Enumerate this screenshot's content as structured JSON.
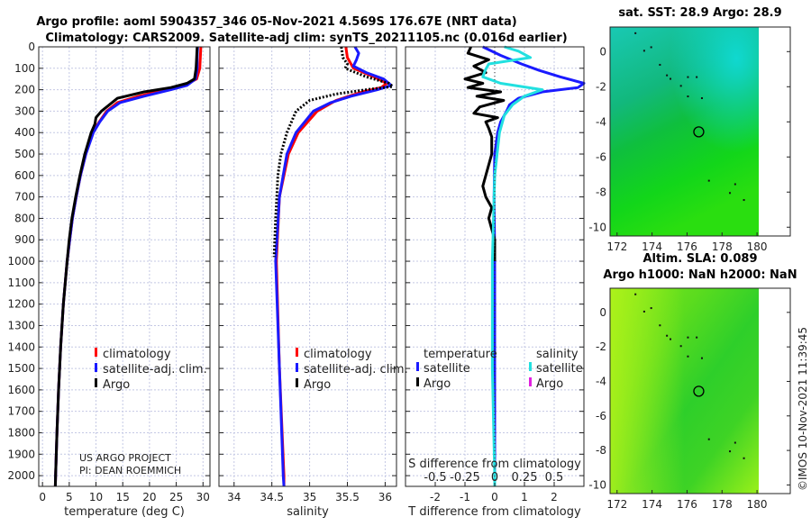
{
  "title_line1": "Argo profile: aoml 5904357_346 05-Nov-2021 4.569S 176.67E (NRT data)",
  "title_line2": "Climatology: CARS2009. Satellite-adj clim: synTS_20211105.nc (0.016d earlier)",
  "credit_line1": "US ARGO PROJECT",
  "credit_line2": "PI: DEAN ROEMMICH",
  "timestamp": "©IMOS 10-Nov-2021 11:39:45",
  "colors": {
    "climatology": "#ff0000",
    "satellite": "#1a1aff",
    "argo": "#000000",
    "sal_satellite": "#22e0e0",
    "sal_argo": "#e020e0",
    "grid": "#c4c8e4"
  },
  "chart_data": [
    {
      "type": "line",
      "id": "temperature",
      "xlabel": "temperature (deg C)",
      "ylabel": "",
      "xlim": [
        -0.7,
        31.3
      ],
      "ylim": [
        0,
        2050
      ],
      "xticks": [
        "0",
        "5",
        "10",
        "15",
        "20",
        "25",
        "30"
      ],
      "xtick_values": [
        0,
        5,
        10,
        15,
        20,
        25,
        30
      ],
      "yticks": [
        "0",
        "100",
        "200",
        "300",
        "400",
        "500",
        "600",
        "700",
        "800",
        "900",
        "1000",
        "1100",
        "1200",
        "1300",
        "1400",
        "1500",
        "1600",
        "1700",
        "1800",
        "1900",
        "2000"
      ],
      "ytick_values": [
        0,
        100,
        200,
        300,
        400,
        500,
        600,
        700,
        800,
        900,
        1000,
        1100,
        1200,
        1300,
        1400,
        1500,
        1600,
        1700,
        1800,
        1900,
        2000
      ],
      "legend": [
        "climatology",
        "satellite-adj. clim.",
        "Argo"
      ],
      "series": [
        {
          "name": "climatology",
          "color_key": "climatology",
          "depth": [
            0,
            50,
            100,
            150,
            180,
            200,
            230,
            260,
            300,
            350,
            400,
            500,
            600,
            700,
            800,
            900,
            1000,
            1200,
            1400,
            1600,
            1800,
            2000,
            2050
          ],
          "values": [
            29.6,
            29.5,
            29.4,
            28.8,
            26.5,
            23,
            18,
            14,
            12,
            10.6,
            9.4,
            8.1,
            7.1,
            6.3,
            5.6,
            5.1,
            4.6,
            3.9,
            3.4,
            3,
            2.7,
            2.45,
            2.4
          ]
        },
        {
          "name": "satellite-adj. clim.",
          "color_key": "satellite",
          "depth": [
            0,
            50,
            100,
            150,
            180,
            200,
            230,
            260,
            300,
            350,
            400,
            500,
            600,
            700,
            800,
            900,
            1000,
            1200,
            1400,
            1600,
            1800,
            2000,
            2050
          ],
          "values": [
            29.0,
            28.9,
            28.9,
            28.6,
            27,
            24,
            19,
            14.5,
            12.2,
            10.7,
            9.5,
            8.1,
            7.1,
            6.3,
            5.6,
            5.1,
            4.6,
            3.9,
            3.4,
            3,
            2.7,
            2.45,
            2.4
          ]
        },
        {
          "name": "Argo",
          "color_key": "argo",
          "depth": [
            0,
            50,
            100,
            150,
            170,
            190,
            210,
            240,
            270,
            300,
            330,
            360,
            400,
            500,
            600,
            700,
            800,
            900,
            1000,
            1200,
            1400,
            1600,
            1800,
            2000,
            2050
          ],
          "values": [
            28.9,
            28.8,
            28.7,
            28.4,
            27,
            24,
            19,
            14,
            12.5,
            11,
            10,
            9.8,
            9.1,
            7.9,
            7,
            6.2,
            5.5,
            5,
            4.6,
            3.9,
            3.4,
            3,
            2.7,
            2.45,
            2.4
          ]
        }
      ]
    },
    {
      "type": "line",
      "id": "salinity",
      "xlabel": "salinity",
      "xlim": [
        33.8,
        36.15
      ],
      "ylim": [
        0,
        2050
      ],
      "xticks": [
        "34",
        "34.5",
        "35",
        "35.5",
        "36"
      ],
      "xtick_values": [
        34,
        34.5,
        35,
        35.5,
        36
      ],
      "legend": [
        "climatology",
        "satellite-adj. clim.",
        "Argo"
      ],
      "series": [
        {
          "name": "climatology",
          "color_key": "climatology",
          "depth": [
            0,
            50,
            100,
            140,
            170,
            190,
            210,
            250,
            300,
            400,
            500,
            700,
            1000,
            1500,
            2000,
            2050
          ],
          "values": [
            35.48,
            35.5,
            35.58,
            35.85,
            36.02,
            35.95,
            35.7,
            35.35,
            35.1,
            34.85,
            34.72,
            34.6,
            34.56,
            34.6,
            34.66,
            34.66
          ]
        },
        {
          "name": "satellite-adj. clim.",
          "color_key": "satellite",
          "depth": [
            0,
            30,
            60,
            90,
            120,
            150,
            180,
            200,
            230,
            260,
            300,
            400,
            500,
            700,
            1000,
            1500,
            2000,
            2050
          ],
          "values": [
            35.6,
            35.65,
            35.62,
            35.58,
            35.75,
            35.98,
            36.08,
            35.9,
            35.55,
            35.28,
            35.05,
            34.82,
            34.7,
            34.6,
            34.55,
            34.6,
            34.65,
            34.66
          ]
        },
        {
          "name": "Argo",
          "color_key": "argo",
          "dashed": true,
          "depth": [
            0,
            50,
            80,
            100,
            140,
            170,
            185,
            200,
            220,
            250,
            300,
            400,
            500,
            600,
            800,
            980
          ],
          "values": [
            35.42,
            35.44,
            35.5,
            35.47,
            35.75,
            36.05,
            36.1,
            35.75,
            35.35,
            35.0,
            34.82,
            34.7,
            34.62,
            34.58,
            34.55,
            34.53
          ]
        }
      ]
    },
    {
      "type": "line",
      "id": "differences",
      "xlabel": "T difference from climatology",
      "x2label": "S difference from climatology",
      "xlim": [
        -3,
        3
      ],
      "ylim": [
        0,
        2050
      ],
      "xticks": [
        "-2",
        "-1",
        "0",
        "1",
        "2"
      ],
      "xtick_values": [
        -2,
        -1,
        0,
        1,
        2
      ],
      "s_ticks": [
        "-0.5",
        "-0.25",
        "0",
        "0.25",
        "0.5"
      ],
      "s_tick_values": [
        -0.5,
        -0.25,
        0,
        0.25,
        0.5
      ],
      "legend_headers": [
        "temperature",
        "salinity"
      ],
      "legend": [
        "satellite",
        "Argo",
        "satellite",
        "Argo"
      ],
      "series": [
        {
          "name": "T satellite",
          "color_key": "satellite",
          "units": "T",
          "depth": [
            0,
            40,
            80,
            110,
            140,
            170,
            190,
            210,
            240,
            270,
            300,
            350,
            400,
            500,
            700,
            1000,
            2000,
            2050
          ],
          "values": [
            -0.4,
            0.2,
            0.9,
            1.5,
            2.2,
            3.0,
            2.8,
            1.6,
            0.8,
            0.5,
            0.4,
            0.2,
            0.1,
            0.0,
            -0.02,
            0,
            0,
            0
          ]
        },
        {
          "name": "T Argo",
          "color_key": "argo",
          "units": "T",
          "depth": [
            0,
            30,
            60,
            90,
            120,
            150,
            170,
            190,
            210,
            230,
            250,
            280,
            310,
            330,
            350,
            380,
            420,
            500,
            600,
            650,
            700,
            750,
            800,
            900,
            1000
          ],
          "values": [
            -0.8,
            -0.9,
            -0.2,
            -0.7,
            -0.3,
            -1.0,
            -0.4,
            -0.9,
            0.2,
            -0.6,
            0.3,
            -0.5,
            -0.7,
            0.1,
            -0.3,
            -0.2,
            -0.1,
            -0.1,
            -0.3,
            -0.4,
            -0.3,
            -0.1,
            -0.2,
            0,
            0
          ]
        },
        {
          "name": "S satellite",
          "color_key": "sal_satellite",
          "units": "S",
          "depth": [
            0,
            20,
            50,
            80,
            110,
            140,
            170,
            200,
            230,
            270,
            320,
            400,
            600,
            1000,
            1500,
            2000,
            2050
          ],
          "values": [
            0.08,
            0.2,
            0.3,
            -0.05,
            -0.08,
            -0.1,
            0.05,
            0.4,
            0.25,
            0.15,
            0.08,
            0.04,
            0,
            -0.02,
            -0.02,
            0,
            0
          ]
        }
      ]
    },
    {
      "type": "heatmap",
      "id": "sst_map",
      "title": "sat. SST: 28.9 Argo: 28.9",
      "xticks": [
        "172",
        "174",
        "176",
        "178",
        "180"
      ],
      "xtick_values": [
        172,
        174,
        176,
        178,
        180
      ],
      "yticks": [
        "0",
        "-2",
        "-4",
        "-6",
        "-8",
        "-10"
      ],
      "ytick_values": [
        0,
        -2,
        -4,
        -6,
        -8,
        -10
      ],
      "xlim": [
        171.6,
        181.9
      ],
      "ylim": [
        -10.5,
        1.4
      ],
      "data_lon_max": 180.1,
      "profile_location": [
        176.67,
        -4.569
      ]
    },
    {
      "type": "heatmap",
      "id": "sla_map",
      "title": "Altim. SLA: 0.089",
      "subtitle": "Argo h1000: NaN h2000: NaN",
      "xticks": [
        "172",
        "174",
        "176",
        "178",
        "180"
      ],
      "xtick_values": [
        172,
        174,
        176,
        178,
        180
      ],
      "yticks": [
        "0",
        "-2",
        "-4",
        "-6",
        "-8",
        "-10"
      ],
      "ytick_values": [
        0,
        -2,
        -4,
        -6,
        -8,
        -10
      ],
      "xlim": [
        171.6,
        181.9
      ],
      "ylim": [
        -10.5,
        1.4
      ],
      "data_lon_max": 180.1,
      "profile_location": [
        176.67,
        -4.569
      ]
    }
  ]
}
